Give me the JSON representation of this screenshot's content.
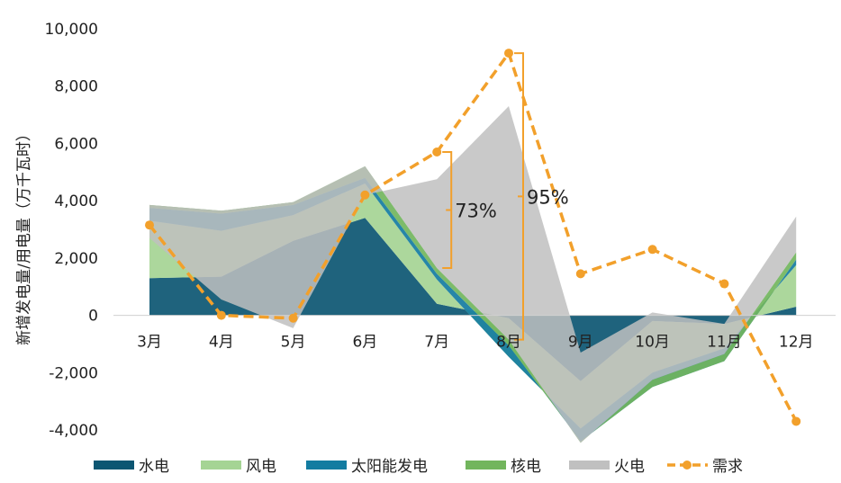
{
  "chart_data": {
    "type": "area",
    "title": "",
    "xlabel": "",
    "ylabel": "新增发电量/用电量（万千瓦时）",
    "categories": [
      "3月",
      "4月",
      "5月",
      "6月",
      "7月",
      "8月",
      "9月",
      "10月",
      "11月",
      "12月"
    ],
    "ylim": [
      -4000,
      10000
    ],
    "yticks": [
      -4000,
      -2000,
      0,
      2000,
      4000,
      6000,
      8000,
      10000
    ],
    "ytick_labels": [
      "-4,000",
      "-2,000",
      "0",
      "2,000",
      "4,000",
      "6,000",
      "8,000",
      "10,000"
    ],
    "series": [
      {
        "name": "水电",
        "kind": "area",
        "color": "#0c5672",
        "values": [
          1300,
          1350,
          2600,
          3400,
          400,
          -100,
          -2300,
          -200,
          -300,
          300
        ]
      },
      {
        "name": "风电",
        "kind": "area",
        "color": "#a5d494",
        "values": [
          2000,
          1600,
          900,
          1200,
          850,
          -1350,
          -1650,
          -1800,
          -850,
          1450
        ]
      },
      {
        "name": "太阳能发电",
        "kind": "area",
        "color": "#137ca1",
        "values": [
          450,
          600,
          350,
          200,
          200,
          400,
          -450,
          -500,
          -450,
          200
        ]
      },
      {
        "name": "核电",
        "kind": "area",
        "color": "#72b55d",
        "values": [
          100,
          100,
          100,
          400,
          200,
          200,
          -50,
          250,
          250,
          250
        ]
      },
      {
        "name": "火电",
        "kind": "area",
        "color": "#c0c0c0",
        "values": [
          -1150,
          -3100,
          -4400,
          -1000,
          3100,
          8150,
          3150,
          2350,
          1050,
          1250
        ]
      },
      {
        "name": "需求",
        "kind": "line",
        "color": "#f2a02b",
        "values": [
          3150,
          0,
          -100,
          4200,
          5700,
          9150,
          1450,
          2300,
          1100,
          -3700
        ]
      }
    ],
    "annotations": [
      {
        "text": "73%",
        "x_index": 4
      },
      {
        "text": "95%",
        "x_index": 5
      }
    ],
    "grid": false,
    "legend": "bottom"
  }
}
